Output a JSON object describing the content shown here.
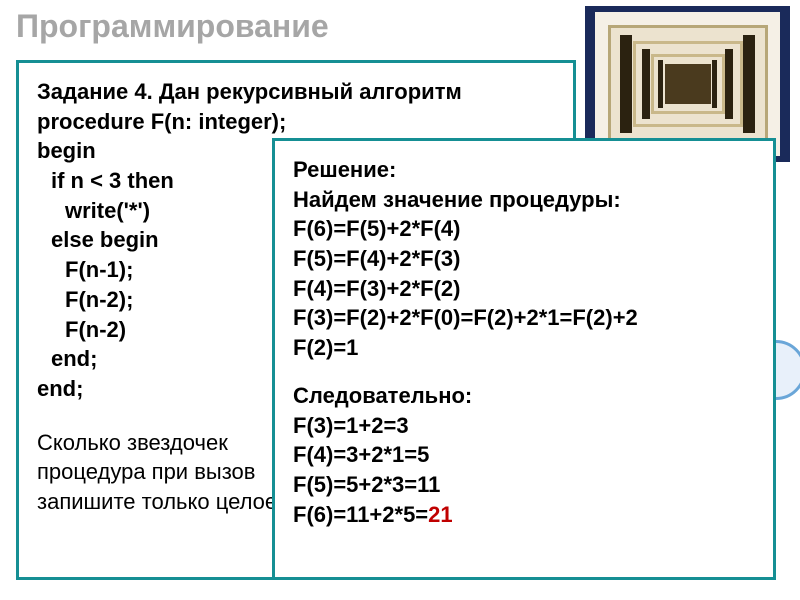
{
  "title": "Программирование",
  "problem": {
    "heading": "Задание 4. Дан рекурсивный алгоритм",
    "code": [
      {
        "t": "procedure F(n: integer);",
        "ind": 0,
        "bold": true
      },
      {
        "t": "begin",
        "ind": 0,
        "bold": true
      },
      {
        "t": "if n < 3 then",
        "ind": 1,
        "bold": true
      },
      {
        "t": "write('*')",
        "ind": 2,
        "bold": true
      },
      {
        "t": "else begin",
        "ind": 1,
        "bold": true
      },
      {
        "t": "F(n-1);",
        "ind": 2,
        "bold": true
      },
      {
        "t": "F(n-2);",
        "ind": 2,
        "bold": true
      },
      {
        "t": "F(n-2)",
        "ind": 2,
        "bold": true
      },
      {
        "t": "end;",
        "ind": 1,
        "bold": true
      },
      {
        "t": "end;",
        "ind": 0,
        "bold": true
      }
    ],
    "question_lines": [
      "Сколько    звездочек",
      "процедура   при   вызов",
      "запишите только целое ч"
    ]
  },
  "solution": {
    "heading1": "Решение:",
    "heading2": "Найдем значение процедуры:",
    "lines1": [
      "F(6)=F(5)+2*F(4)",
      "F(5)=F(4)+2*F(3)",
      "F(4)=F(3)+2*F(2)",
      "F(3)=F(2)+2*F(0)=F(2)+2*1=F(2)+2",
      "F(2)=1"
    ],
    "heading3": "Следовательно:",
    "lines2": [
      "F(3)=1+2=3",
      "F(4)=3+2*1=5",
      "F(5)=5+2*3=11"
    ],
    "final_prefix": "F(6)=11+2*5=",
    "final_answer": "21"
  },
  "colors": {
    "title": "#a6a6a6",
    "card_border": "#158f94",
    "answer": "#c00000",
    "frame_border": "#1a2a5a"
  }
}
